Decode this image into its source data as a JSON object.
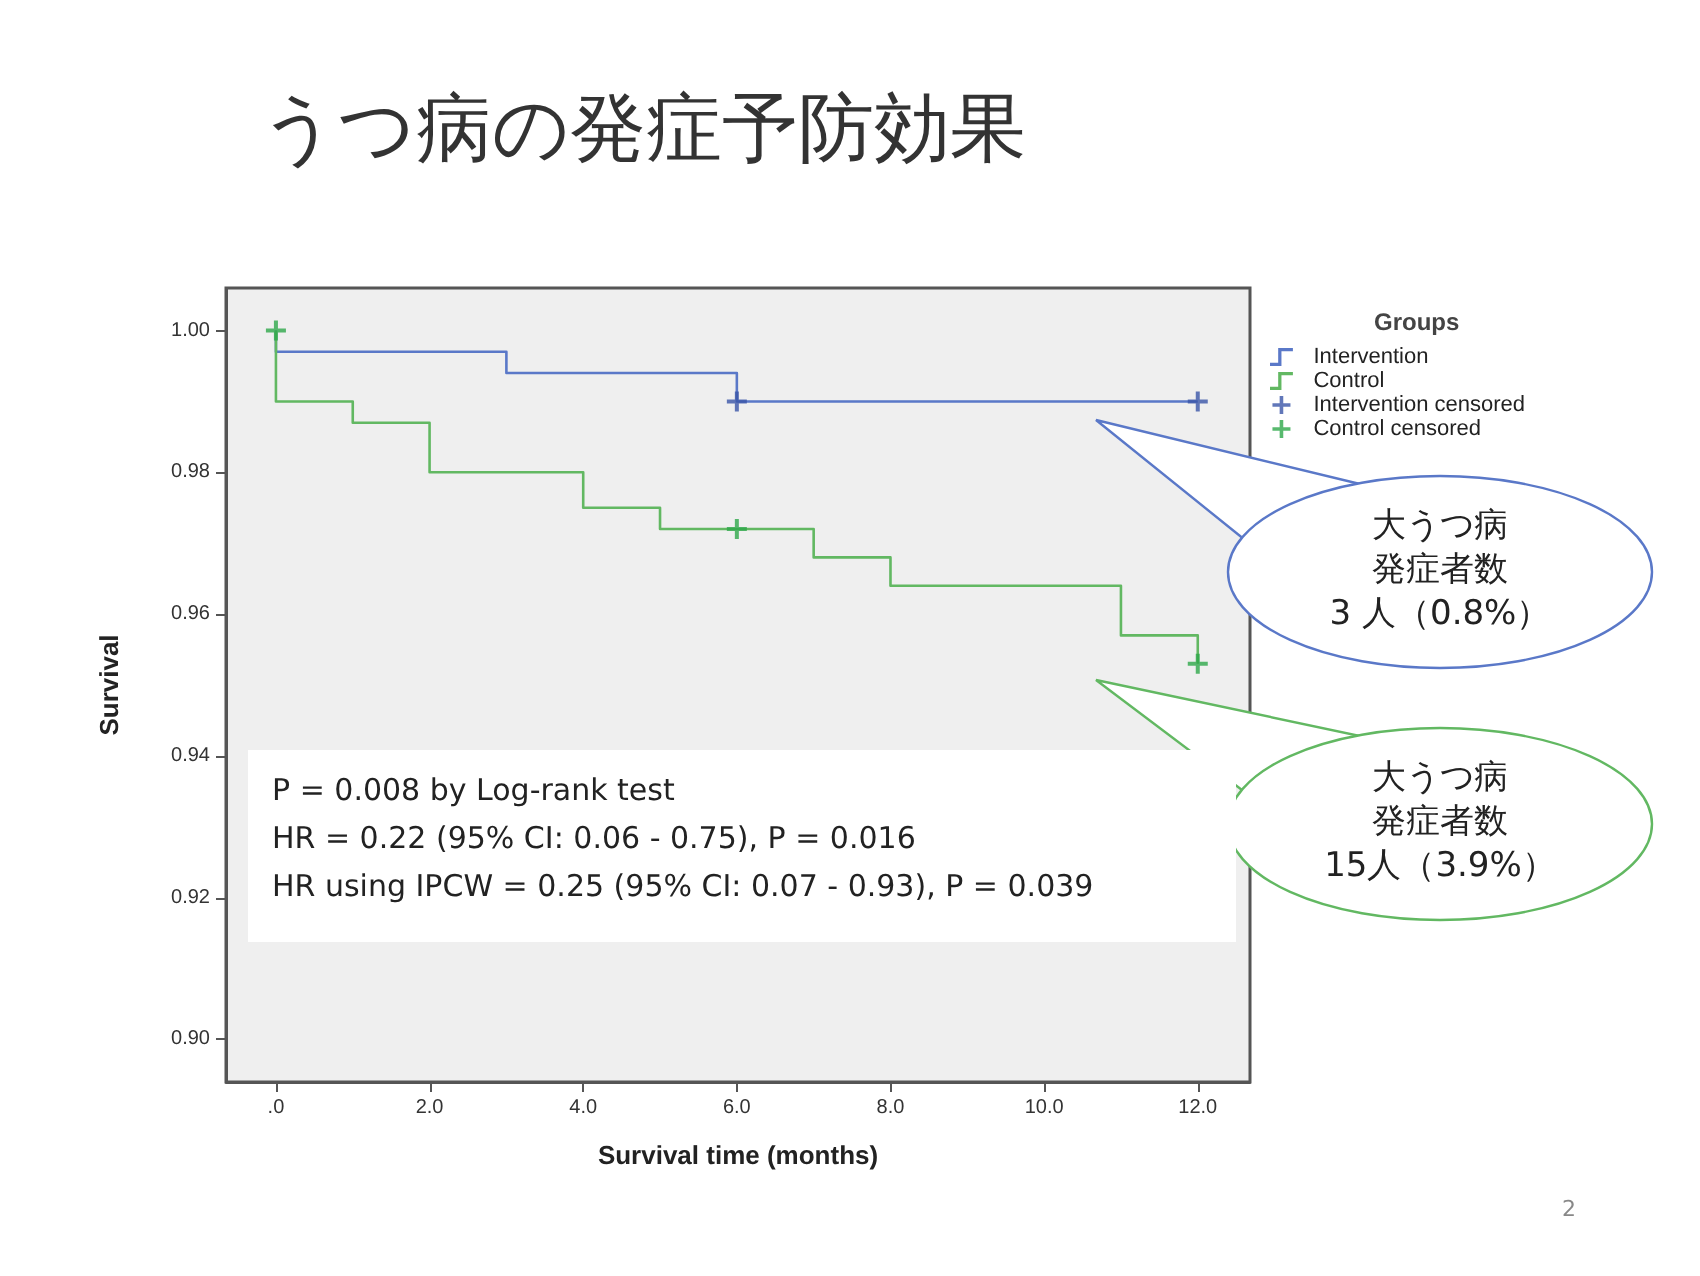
{
  "chart_data": {
    "type": "step",
    "title": "うつ病の発症予防効果",
    "xlabel": "Survival time (months)",
    "ylabel": "Survival",
    "legend_title": "Groups",
    "xlim": [
      -0.65,
      12.68
    ],
    "ylim": [
      0.894,
      1.006
    ],
    "xticks": [
      {
        "value": 0,
        "label": ".0"
      },
      {
        "value": 2,
        "label": "2.0"
      },
      {
        "value": 4,
        "label": "4.0"
      },
      {
        "value": 6,
        "label": "6.0"
      },
      {
        "value": 8,
        "label": "8.0"
      },
      {
        "value": 10,
        "label": "10.0"
      },
      {
        "value": 12,
        "label": "12.0"
      }
    ],
    "yticks": [
      {
        "value": 0.9,
        "label": "0.90"
      },
      {
        "value": 0.92,
        "label": "0.92"
      },
      {
        "value": 0.94,
        "label": "0.94"
      },
      {
        "value": 0.96,
        "label": "0.96"
      },
      {
        "value": 0.98,
        "label": "0.98"
      },
      {
        "value": 1,
        "label": "1.00"
      }
    ],
    "grid": false,
    "legend": "right",
    "marker": "none",
    "series": [
      {
        "name": "Intervention",
        "color": "#5a78c8",
        "x": [
          0,
          0,
          3,
          6,
          12
        ],
        "values": [
          1.0,
          0.997,
          0.994,
          0.99,
          0.99
        ]
      },
      {
        "name": "Control",
        "color": "#62b862",
        "x": [
          0,
          0,
          1,
          2,
          4,
          5,
          7,
          8,
          11,
          12
        ],
        "values": [
          1.0,
          0.99,
          0.987,
          0.98,
          0.975,
          0.972,
          0.968,
          0.964,
          0.957,
          0.953
        ]
      },
      {
        "name": "Intervention censored",
        "type": "scatter",
        "marker": "cross",
        "color": "#3a55a8",
        "x": [
          6,
          12
        ],
        "values": [
          0.99,
          0.99
        ]
      },
      {
        "name": "Control censored",
        "type": "scatter",
        "marker": "cross",
        "color": "#2ea84a",
        "x": [
          0,
          6,
          12
        ],
        "values": [
          1.0,
          0.972,
          0.953
        ]
      }
    ],
    "annotations": [
      "大うつ病",
      "発症者数",
      "3 人（0.8%）",
      "大うつ病",
      "発症者数",
      "15人（3.9%）",
      "P = 0.008 by Log-rank test\nHR = 0.22 (95% CI: 0.06 - 0.75), P = 0.016\nHR using IPCW = 0.25 (95% CI: 0.07 - 0.93), P = 0.039",
      "2"
    ]
  }
}
